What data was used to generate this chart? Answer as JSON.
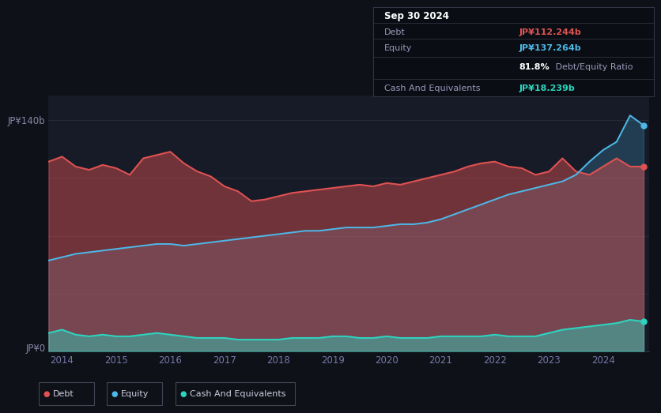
{
  "bg_color": "#0e1117",
  "chart_area_color": "#161b27",
  "title_text": "Sep 30 2024",
  "debt_label": "Debt",
  "equity_label": "Equity",
  "cash_label": "Cash And Equivalents",
  "debt_value": "JP¥112.244b",
  "equity_value": "JP¥137.264b",
  "ratio_text": "81.8%",
  "ratio_label": " Debt/Equity Ratio",
  "cash_value": "JP¥18.239b",
  "debt_color": "#e05252",
  "equity_color": "#4db8e8",
  "cash_color": "#2dd4bf",
  "ylabel_top": "JP¥140b",
  "ylabel_bottom": "JP¥0",
  "x_years": [
    2014,
    2015,
    2016,
    2017,
    2018,
    2019,
    2020,
    2021,
    2022,
    2023,
    2024
  ],
  "debt_data_x": [
    2013.75,
    2014.0,
    2014.25,
    2014.5,
    2014.75,
    2015.0,
    2015.25,
    2015.5,
    2015.75,
    2016.0,
    2016.25,
    2016.5,
    2016.75,
    2017.0,
    2017.25,
    2017.5,
    2017.75,
    2018.0,
    2018.25,
    2018.5,
    2018.75,
    2019.0,
    2019.25,
    2019.5,
    2019.75,
    2020.0,
    2020.25,
    2020.5,
    2020.75,
    2021.0,
    2021.25,
    2021.5,
    2021.75,
    2022.0,
    2022.25,
    2022.5,
    2022.75,
    2023.0,
    2023.25,
    2023.5,
    2023.75,
    2024.0,
    2024.25,
    2024.5,
    2024.75
  ],
  "debt_data_y": [
    115,
    118,
    112,
    110,
    113,
    111,
    107,
    117,
    119,
    121,
    114,
    109,
    106,
    100,
    97,
    91,
    92,
    94,
    96,
    97,
    98,
    99,
    100,
    101,
    100,
    102,
    101,
    103,
    105,
    107,
    109,
    112,
    114,
    115,
    112,
    111,
    107,
    109,
    117,
    109,
    107,
    112,
    117,
    112,
    112
  ],
  "equity_data_x": [
    2013.75,
    2014.0,
    2014.25,
    2014.5,
    2014.75,
    2015.0,
    2015.25,
    2015.5,
    2015.75,
    2016.0,
    2016.25,
    2016.5,
    2016.75,
    2017.0,
    2017.25,
    2017.5,
    2017.75,
    2018.0,
    2018.25,
    2018.5,
    2018.75,
    2019.0,
    2019.25,
    2019.5,
    2019.75,
    2020.0,
    2020.25,
    2020.5,
    2020.75,
    2021.0,
    2021.25,
    2021.5,
    2021.75,
    2022.0,
    2022.25,
    2022.5,
    2022.75,
    2023.0,
    2023.25,
    2023.5,
    2023.75,
    2024.0,
    2024.25,
    2024.5,
    2024.75
  ],
  "equity_data_y": [
    55,
    57,
    59,
    60,
    61,
    62,
    63,
    64,
    65,
    65,
    64,
    65,
    66,
    67,
    68,
    69,
    70,
    71,
    72,
    73,
    73,
    74,
    75,
    75,
    75,
    76,
    77,
    77,
    78,
    80,
    83,
    86,
    89,
    92,
    95,
    97,
    99,
    101,
    103,
    107,
    115,
    122,
    127,
    143,
    137
  ],
  "cash_data_x": [
    2013.75,
    2014.0,
    2014.25,
    2014.5,
    2014.75,
    2015.0,
    2015.25,
    2015.5,
    2015.75,
    2016.0,
    2016.25,
    2016.5,
    2016.75,
    2017.0,
    2017.25,
    2017.5,
    2017.75,
    2018.0,
    2018.25,
    2018.5,
    2018.75,
    2019.0,
    2019.25,
    2019.5,
    2019.75,
    2020.0,
    2020.25,
    2020.5,
    2020.75,
    2021.0,
    2021.25,
    2021.5,
    2021.75,
    2022.0,
    2022.25,
    2022.5,
    2022.75,
    2023.0,
    2023.25,
    2023.5,
    2023.75,
    2024.0,
    2024.25,
    2024.5,
    2024.75
  ],
  "cash_data_y": [
    11,
    13,
    10,
    9,
    10,
    9,
    9,
    10,
    11,
    10,
    9,
    8,
    8,
    8,
    7,
    7,
    7,
    7,
    8,
    8,
    8,
    9,
    9,
    8,
    8,
    9,
    8,
    8,
    8,
    9,
    9,
    9,
    9,
    10,
    9,
    9,
    9,
    11,
    13,
    14,
    15,
    16,
    17,
    19,
    18
  ],
  "x_min": 2013.75,
  "x_max": 2024.85,
  "y_min": 0,
  "y_max": 155
}
